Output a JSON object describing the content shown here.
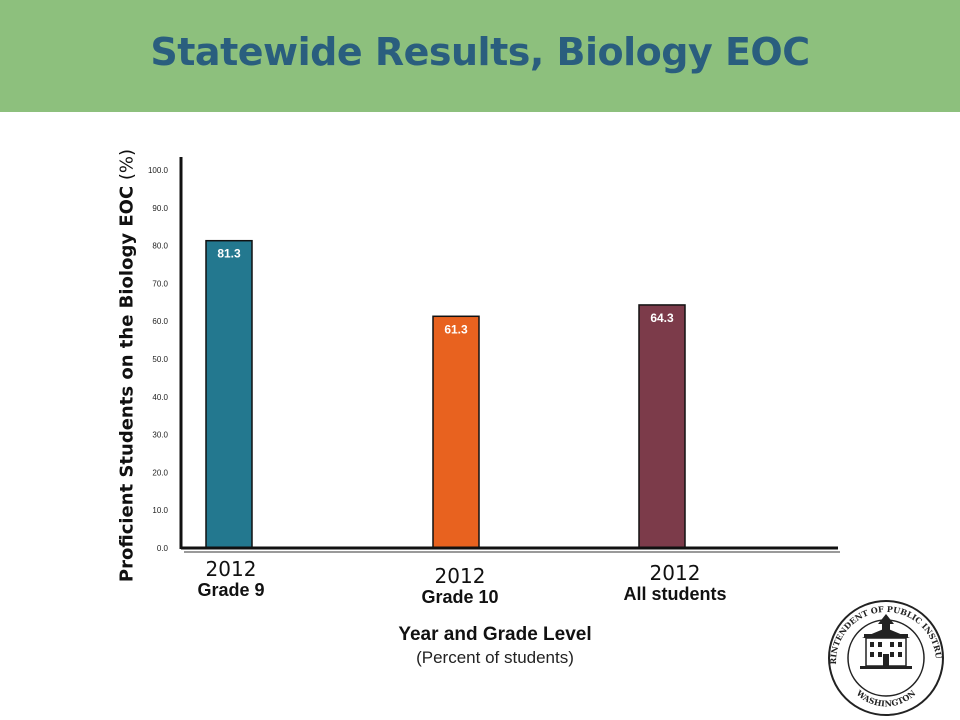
{
  "header": {
    "title": "Statewide Results, Biology EOC"
  },
  "colors": {
    "header_bg": "#8dc07d",
    "title": "#2a5e7e"
  },
  "chart_data": {
    "type": "bar",
    "categories": [
      {
        "year": "2012",
        "grade": "Grade 9"
      },
      {
        "year": "2012",
        "grade": "Grade 10"
      },
      {
        "year": "2012",
        "grade": "All students"
      }
    ],
    "values": [
      81.3,
      61.3,
      64.3
    ],
    "value_labels": [
      "81.3",
      "61.3",
      "64.3"
    ],
    "bar_colors": [
      "#23788f",
      "#e8621f",
      "#7c3b4a"
    ],
    "ylabel_bold": "Proficient Students on the Biology EOC",
    "ylabel_unit": "(%)",
    "xlabel": "Year and Grade Level",
    "xlabel_sub": "(Percent of students)",
    "ylim": [
      0,
      100
    ],
    "yticks": [
      "0.0",
      "10.0",
      "20.0",
      "30.0",
      "40.0",
      "50.0",
      "60.0",
      "70.0",
      "80.0",
      "90.0",
      "100.0"
    ],
    "grid": false
  },
  "seal": {
    "ring_text_top": "SUPERINTENDENT OF PUBLIC INSTRUCTION",
    "ring_text_bottom": "WASHINGTON"
  }
}
